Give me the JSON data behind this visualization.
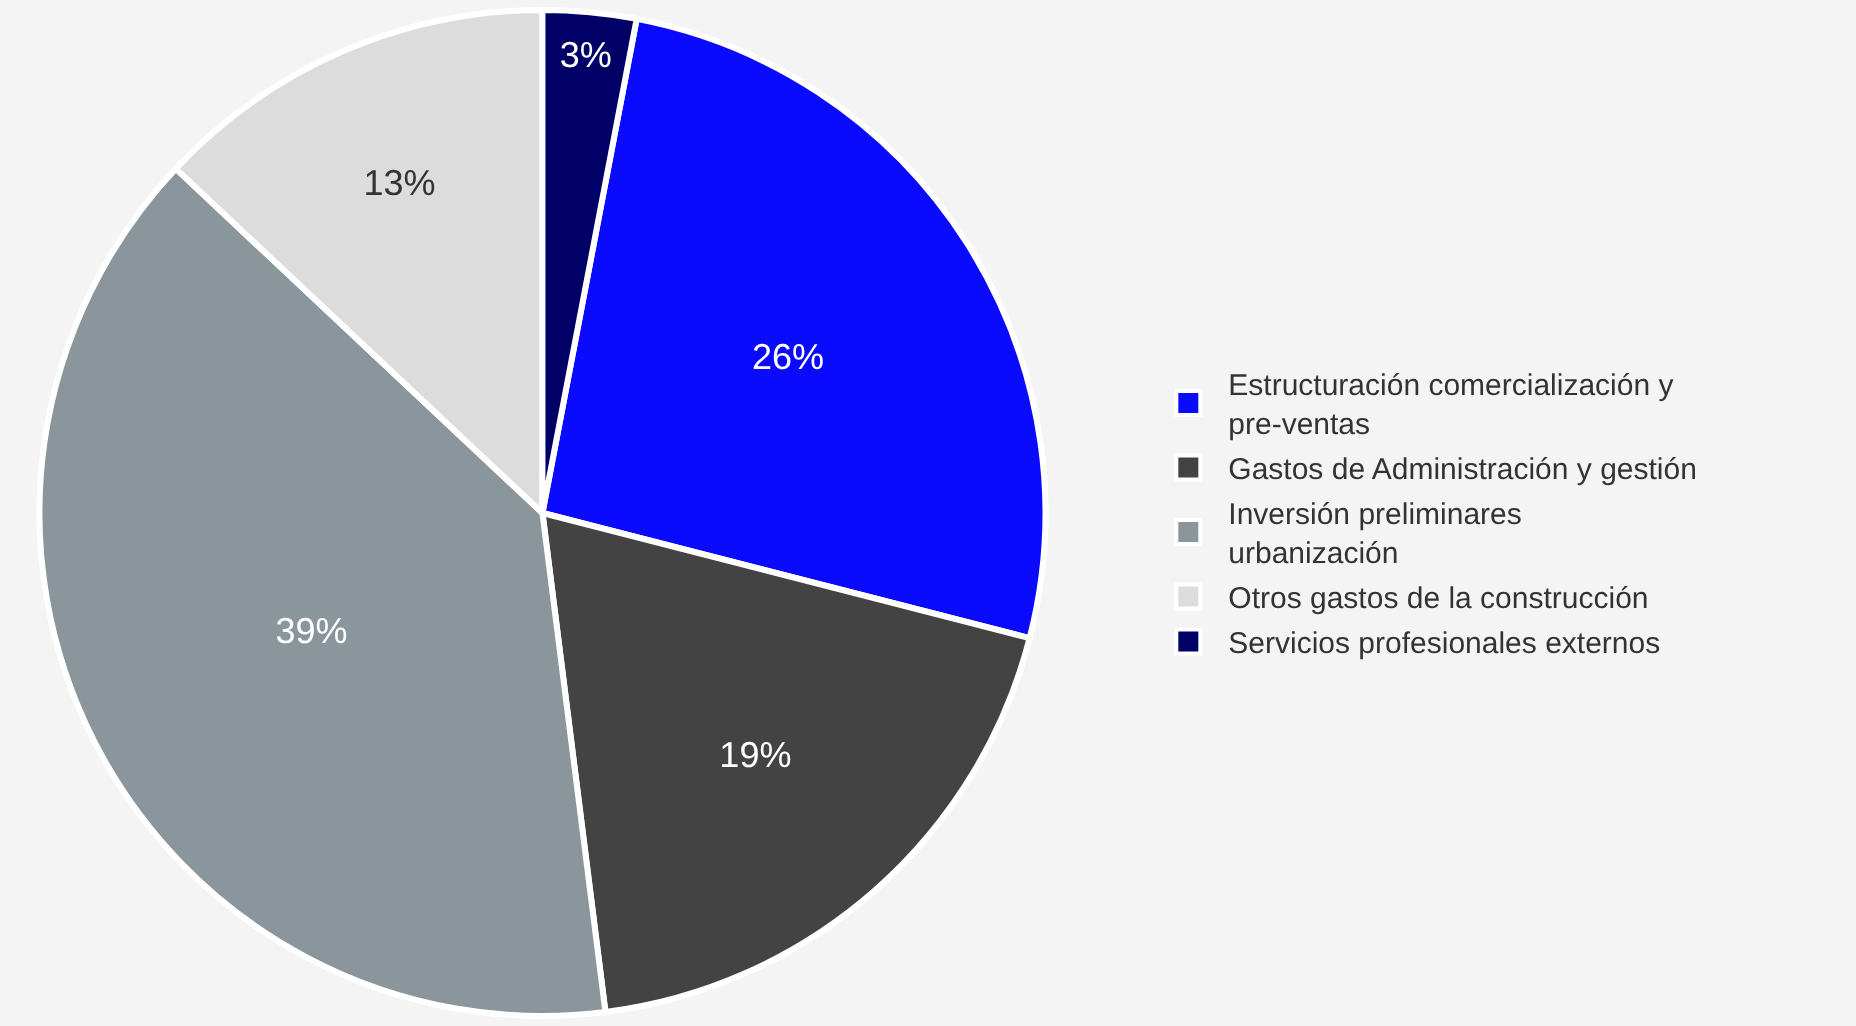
{
  "chart_data": {
    "type": "pie",
    "categories": [
      "Estructuración comercialización y pre-ventas",
      "Gastos de Administración y gestión",
      "Inversión preliminares urbanización",
      "Otros gastos de la construcción",
      "Servicios profesionales externos"
    ],
    "values": [
      26,
      19,
      39,
      13,
      3
    ],
    "value_labels": [
      "26%",
      "19%",
      "39%",
      "13%",
      "3%"
    ],
    "colors": [
      "#0a0aff",
      "#434343",
      "#8a959c",
      "#dcdcdc",
      "#000066"
    ],
    "legend": "right"
  }
}
